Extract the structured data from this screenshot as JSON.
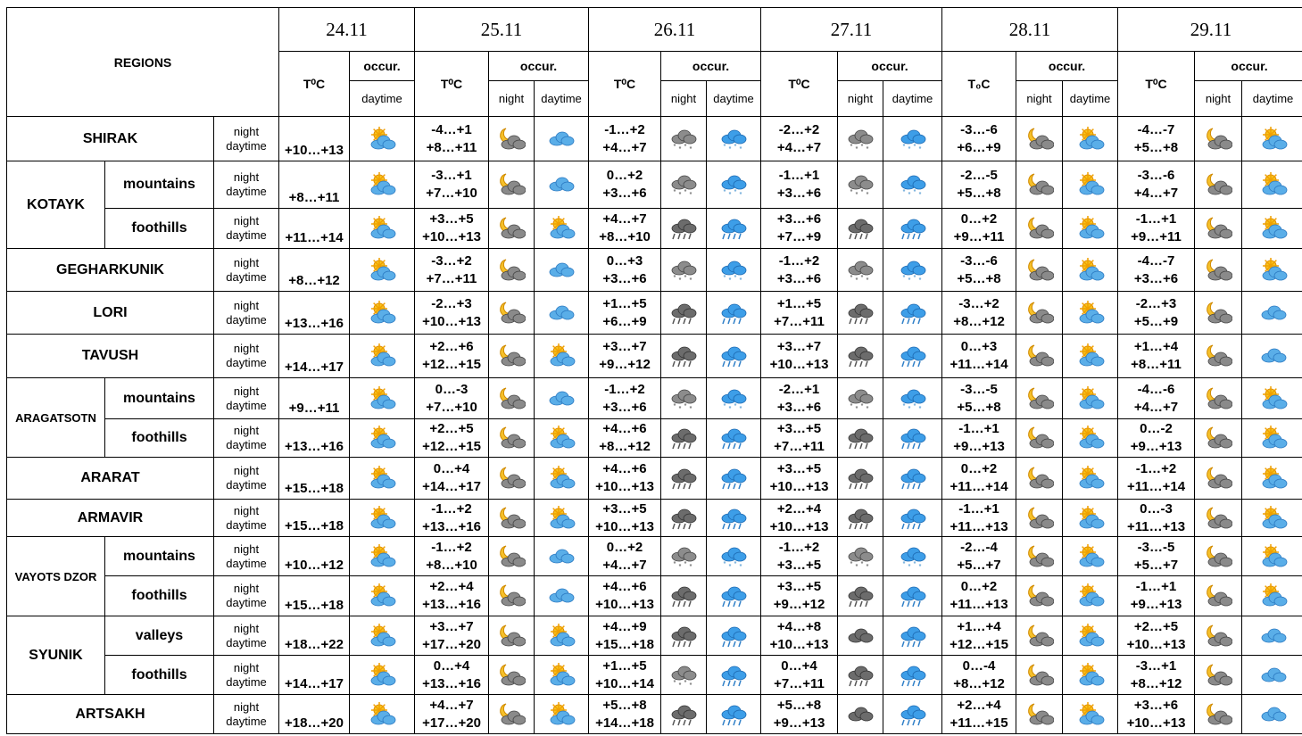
{
  "header": {
    "regions": "REGIONS",
    "occur": "occur.",
    "night": "night",
    "daytime": "daytime",
    "days": [
      {
        "date": "24.11",
        "temp": "T⁰C"
      },
      {
        "date": "25.11",
        "temp": "T⁰C"
      },
      {
        "date": "26.11",
        "temp": "T⁰C"
      },
      {
        "date": "27.11",
        "temp": "T⁰C"
      },
      {
        "date": "28.11",
        "temp": "T₀C"
      },
      {
        "date": "29.11",
        "temp": "T⁰C"
      }
    ]
  },
  "regions": [
    {
      "name": "SHIRAK",
      "parts": [
        {
          "t24": "+10…+13",
          "i24": "sun-cloud",
          "days": [
            [
              "-4…+1",
              "+8…+11",
              "moon-cloud",
              "cloud"
            ],
            [
              "-1…+2",
              "+4…+7",
              "grey-snow",
              "blue-snow"
            ],
            [
              "-2…+2",
              "+4…+7",
              "grey-snow",
              "blue-snow"
            ],
            [
              "-3…-6",
              "+6…+9",
              "moon-cloud",
              "sun-cloud"
            ],
            [
              "-4…-7",
              "+5…+8",
              "moon-cloud",
              "sun-cloud"
            ]
          ]
        }
      ]
    },
    {
      "name": "KOTAYK",
      "parts": [
        {
          "name": "mountains",
          "t24": "+8…+11",
          "i24": "sun-cloud",
          "days": [
            [
              "-3…+1",
              "+7…+10",
              "moon-cloud",
              "cloud"
            ],
            [
              "0…+2",
              "+3…+6",
              "grey-snow",
              "blue-snow"
            ],
            [
              "-1…+1",
              "+3…+6",
              "grey-snow",
              "blue-snow"
            ],
            [
              "-2…-5",
              "+5…+8",
              "moon-cloud",
              "sun-cloud"
            ],
            [
              "-3…-6",
              "+4…+7",
              "moon-cloud",
              "sun-cloud"
            ]
          ]
        },
        {
          "name": "foothills",
          "t24": "+11…+14",
          "i24": "sun-cloud",
          "days": [
            [
              "+3…+5",
              "+10…+13",
              "moon-cloud",
              "sun-cloud"
            ],
            [
              "+4…+7",
              "+8…+10",
              "grey-rain",
              "blue-rain"
            ],
            [
              "+3…+6",
              "+7…+9",
              "grey-rain",
              "blue-rain"
            ],
            [
              "0…+2",
              "+9…+11",
              "moon-cloud",
              "sun-cloud"
            ],
            [
              "-1…+1",
              "+9…+11",
              "moon-cloud",
              "sun-cloud"
            ]
          ]
        }
      ]
    },
    {
      "name": "GEGHARKUNIK",
      "parts": [
        {
          "t24": "+8…+12",
          "i24": "sun-cloud",
          "days": [
            [
              "-3…+2",
              "+7…+11",
              "moon-cloud",
              "cloud"
            ],
            [
              "0…+3",
              "+3…+6",
              "grey-snow",
              "blue-snow"
            ],
            [
              "-1…+2",
              "+3…+6",
              "grey-snow",
              "blue-snow"
            ],
            [
              "-3…-6",
              "+5…+8",
              "moon-cloud",
              "sun-cloud"
            ],
            [
              "-4…-7",
              "+3…+6",
              "moon-cloud",
              "sun-cloud"
            ]
          ]
        }
      ]
    },
    {
      "name": "LORI",
      "parts": [
        {
          "t24": "+13…+16",
          "i24": "sun-cloud",
          "days": [
            [
              "-2…+3",
              "+10…+13",
              "moon-cloud",
              "cloud"
            ],
            [
              "+1…+5",
              "+6…+9",
              "grey-rain",
              "blue-rain"
            ],
            [
              "+1…+5",
              "+7…+11",
              "grey-rain",
              "blue-rain"
            ],
            [
              "-3…+2",
              "+8…+12",
              "moon-cloud",
              "sun-cloud"
            ],
            [
              "-2…+3",
              "+5…+9",
              "moon-cloud",
              "cloud"
            ]
          ]
        }
      ]
    },
    {
      "name": "TAVUSH",
      "parts": [
        {
          "t24": "+14…+17",
          "i24": "sun-cloud",
          "days": [
            [
              "+2…+6",
              "+12…+15",
              "moon-cloud",
              "sun-cloud"
            ],
            [
              "+3…+7",
              "+9…+12",
              "grey-rain",
              "blue-rain"
            ],
            [
              "+3…+7",
              "+10…+13",
              "grey-rain",
              "blue-rain"
            ],
            [
              "0…+3",
              "+11…+14",
              "moon-cloud",
              "sun-cloud"
            ],
            [
              "+1…+4",
              "+8…+11",
              "moon-cloud",
              "cloud"
            ]
          ]
        }
      ]
    },
    {
      "name": "ARAGATSOTN",
      "parts": [
        {
          "name": "mountains",
          "t24": "+9…+11",
          "i24": "sun-cloud",
          "days": [
            [
              "0…-3",
              "+7…+10",
              "moon-cloud",
              "cloud"
            ],
            [
              "-1…+2",
              "+3…+6",
              "grey-snow",
              "blue-snow"
            ],
            [
              "-2…+1",
              "+3…+6",
              "grey-snow",
              "blue-snow"
            ],
            [
              "-3…-5",
              "+5…+8",
              "moon-cloud",
              "sun-cloud"
            ],
            [
              "-4…-6",
              "+4…+7",
              "moon-cloud",
              "sun-cloud"
            ]
          ]
        },
        {
          "name": "foothills",
          "t24": "+13…+16",
          "i24": "sun-cloud",
          "days": [
            [
              "+2…+5",
              "+12…+15",
              "moon-cloud",
              "sun-cloud"
            ],
            [
              "+4…+6",
              "+8…+12",
              "grey-rain",
              "blue-rain"
            ],
            [
              "+3…+5",
              "+7…+11",
              "grey-rain",
              "blue-rain"
            ],
            [
              "-1…+1",
              "+9…+13",
              "moon-cloud",
              "sun-cloud"
            ],
            [
              "0…-2",
              "+9…+13",
              "moon-cloud",
              "sun-cloud"
            ]
          ]
        }
      ]
    },
    {
      "name": "ARARAT",
      "parts": [
        {
          "t24": "+15…+18",
          "i24": "sun-cloud",
          "days": [
            [
              "0…+4",
              "+14…+17",
              "moon-cloud",
              "sun-cloud"
            ],
            [
              "+4…+6",
              "+10…+13",
              "grey-rain",
              "blue-rain"
            ],
            [
              "+3…+5",
              "+10…+13",
              "grey-rain",
              "blue-rain"
            ],
            [
              "0…+2",
              "+11…+14",
              "moon-cloud",
              "sun-cloud"
            ],
            [
              "-1…+2",
              "+11…+14",
              "moon-cloud",
              "sun-cloud"
            ]
          ]
        }
      ]
    },
    {
      "name": "ARMAVIR",
      "parts": [
        {
          "t24": "+15…+18",
          "i24": "sun-cloud",
          "days": [
            [
              "-1…+2",
              "+13…+16",
              "moon-cloud",
              "sun-cloud"
            ],
            [
              "+3…+5",
              "+10…+13",
              "grey-rain",
              "blue-rain"
            ],
            [
              "+2…+4",
              "+10…+13",
              "grey-rain",
              "blue-rain"
            ],
            [
              "-1…+1",
              "+11…+13",
              "moon-cloud",
              "sun-cloud"
            ],
            [
              "0…-3",
              "+11…+13",
              "moon-cloud",
              "sun-cloud"
            ]
          ]
        }
      ]
    },
    {
      "name": "VAYOTS DZOR",
      "parts": [
        {
          "name": "mountains",
          "t24": "+10…+12",
          "i24": "sun-cloud",
          "days": [
            [
              "-1…+2",
              "+8…+10",
              "moon-cloud",
              "cloud"
            ],
            [
              "0…+2",
              "+4…+7",
              "grey-snow",
              "blue-snow"
            ],
            [
              "-1…+2",
              "+3…+5",
              "grey-snow",
              "blue-snow"
            ],
            [
              "-2…-4",
              "+5…+7",
              "moon-cloud",
              "sun-cloud"
            ],
            [
              "-3…-5",
              "+5…+7",
              "moon-cloud",
              "sun-cloud"
            ]
          ]
        },
        {
          "name": "foothills",
          "t24": "+15…+18",
          "i24": "sun-cloud",
          "days": [
            [
              "+2…+4",
              "+13…+16",
              "moon-cloud",
              "cloud"
            ],
            [
              "+4…+6",
              "+10…+13",
              "grey-rain",
              "blue-rain"
            ],
            [
              "+3…+5",
              "+9…+12",
              "grey-rain",
              "blue-rain"
            ],
            [
              "0…+2",
              "+11…+13",
              "moon-cloud",
              "sun-cloud"
            ],
            [
              "-1…+1",
              "+9…+13",
              "moon-cloud",
              "sun-cloud"
            ]
          ]
        }
      ]
    },
    {
      "name": "SYUNIK",
      "parts": [
        {
          "name": "valleys",
          "t24": "+18…+22",
          "i24": "sun-cloud",
          "days": [
            [
              "+3…+7",
              "+17…+20",
              "moon-cloud",
              "sun-cloud"
            ],
            [
              "+4…+9",
              "+15…+18",
              "grey-rain",
              "blue-rain"
            ],
            [
              "+4…+8",
              "+10…+13",
              "grey-cloud",
              "blue-rain"
            ],
            [
              "+1…+4",
              "+12…+15",
              "moon-cloud",
              "sun-cloud"
            ],
            [
              "+2…+5",
              "+10…+13",
              "moon-cloud",
              "cloud"
            ]
          ]
        },
        {
          "name": "foothills",
          "t24": "+14…+17",
          "i24": "sun-cloud",
          "days": [
            [
              "0…+4",
              "+13…+16",
              "moon-cloud",
              "sun-cloud"
            ],
            [
              "+1…+5",
              "+10…+14",
              "grey-snow",
              "blue-rain"
            ],
            [
              "0…+4",
              "+7…+11",
              "grey-rain",
              "blue-rain"
            ],
            [
              "0…-4",
              "+8…+12",
              "moon-cloud",
              "sun-cloud"
            ],
            [
              "-3…+1",
              "+8…+12",
              "moon-cloud",
              "cloud"
            ]
          ]
        }
      ]
    },
    {
      "name": "ARTSAKH",
      "parts": [
        {
          "t24": "+18…+20",
          "i24": "sun-cloud",
          "days": [
            [
              "+4…+7",
              "+17…+20",
              "moon-cloud",
              "sun-cloud"
            ],
            [
              "+5…+8",
              "+14…+18",
              "grey-rain",
              "blue-rain"
            ],
            [
              "+5…+8",
              "+9…+13",
              "grey-cloud",
              "blue-rain"
            ],
            [
              "+2…+4",
              "+11…+15",
              "moon-cloud",
              "sun-cloud"
            ],
            [
              "+3…+6",
              "+10…+13",
              "moon-cloud",
              "cloud"
            ]
          ]
        }
      ]
    }
  ]
}
